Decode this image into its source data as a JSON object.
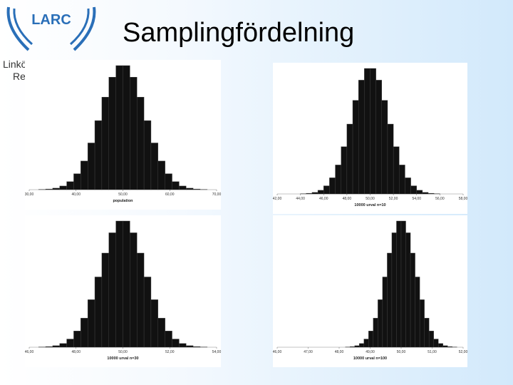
{
  "header": {
    "logo": "LARC",
    "side_text": [
      "Linkö",
      "Res"
    ],
    "title": "Samplingfördelning"
  },
  "chart_data": [
    {
      "type": "histogram",
      "color": "#111111",
      "xlabel": "population",
      "xlim": [
        30,
        70
      ],
      "xticks": [
        {
          "value": 30,
          "label": "30,00"
        },
        {
          "value": 40,
          "label": "40,00"
        },
        {
          "value": 50,
          "label": "50,00"
        },
        {
          "value": 60,
          "label": "60,00"
        },
        {
          "value": 70,
          "label": "70,00"
        }
      ],
      "bins": [
        32,
        33.5,
        35,
        36.5,
        38,
        39.5,
        41,
        42.5,
        44,
        45.5,
        47,
        48.5,
        50,
        51.5,
        53,
        54.5,
        56,
        57.5,
        59,
        60.5,
        62,
        63.5,
        65,
        66.5,
        68
      ],
      "counts": [
        2,
        5,
        12,
        29,
        64,
        127,
        228,
        372,
        550,
        737,
        896,
        988,
        988,
        896,
        737,
        550,
        372,
        228,
        127,
        64,
        29,
        12,
        5,
        2
      ]
    },
    {
      "type": "histogram",
      "color": "#111111",
      "xlabel": "10000 urval n=10",
      "xlim": [
        42,
        58
      ],
      "xticks": [
        {
          "value": 42,
          "label": "42,00"
        },
        {
          "value": 44,
          "label": "44,00"
        },
        {
          "value": 46,
          "label": "46,00"
        },
        {
          "value": 48,
          "label": "48,00"
        },
        {
          "value": 50,
          "label": "50,00"
        },
        {
          "value": 52,
          "label": "52,00"
        },
        {
          "value": 54,
          "label": "54,00"
        },
        {
          "value": 56,
          "label": "56,00"
        },
        {
          "value": 58,
          "label": "58,00"
        }
      ],
      "bins": [
        44,
        44.5,
        45,
        45.5,
        46,
        46.5,
        47,
        47.5,
        48,
        48.5,
        49,
        49.5,
        50,
        50.5,
        51,
        51.5,
        52,
        52.5,
        53,
        53.5,
        54,
        54.5,
        55,
        55.5,
        56
      ],
      "counts": [
        2,
        5,
        12,
        29,
        64,
        127,
        228,
        372,
        550,
        737,
        896,
        988,
        988,
        896,
        737,
        550,
        372,
        228,
        127,
        64,
        29,
        12,
        5,
        2
      ]
    },
    {
      "type": "histogram",
      "color": "#111111",
      "xlabel": "10000 urval n=30",
      "xlim": [
        46,
        54
      ],
      "xticks": [
        {
          "value": 46,
          "label": "46,00"
        },
        {
          "value": 48,
          "label": "48,00"
        },
        {
          "value": 50,
          "label": "50,00"
        },
        {
          "value": 52,
          "label": "52,00"
        },
        {
          "value": 54,
          "label": "54,00"
        }
      ],
      "bins": [
        46.4,
        46.7,
        47,
        47.3,
        47.6,
        47.9,
        48.2,
        48.5,
        48.8,
        49.1,
        49.4,
        49.7,
        50,
        50.3,
        50.6,
        50.9,
        51.2,
        51.5,
        51.8,
        52.1,
        52.4,
        52.7,
        53,
        53.3,
        53.6
      ],
      "counts": [
        2,
        5,
        12,
        29,
        64,
        127,
        228,
        372,
        550,
        737,
        896,
        988,
        988,
        896,
        737,
        550,
        372,
        228,
        127,
        64,
        29,
        12,
        5,
        2
      ]
    },
    {
      "type": "histogram",
      "color": "#111111",
      "xlabel": "10000 urval n=100",
      "xlim": [
        46,
        52
      ],
      "xticks": [
        {
          "value": 46,
          "label": "46,00"
        },
        {
          "value": 47,
          "label": "47,00"
        },
        {
          "value": 48,
          "label": "48,00"
        },
        {
          "value": 49,
          "label": "49,00"
        },
        {
          "value": 50,
          "label": "50,00"
        },
        {
          "value": 51,
          "label": "51,00"
        },
        {
          "value": 52,
          "label": "52,00"
        }
      ],
      "bins": [
        48.2,
        48.35,
        48.5,
        48.65,
        48.8,
        48.95,
        49.1,
        49.25,
        49.4,
        49.55,
        49.7,
        49.85,
        50,
        50.15,
        50.3,
        50.45,
        50.6,
        50.75,
        50.9,
        51.05,
        51.2,
        51.35,
        51.5,
        51.65,
        51.8
      ],
      "counts": [
        2,
        5,
        12,
        29,
        64,
        127,
        228,
        372,
        550,
        737,
        896,
        988,
        988,
        896,
        737,
        550,
        372,
        228,
        127,
        64,
        29,
        12,
        5,
        2
      ]
    }
  ]
}
